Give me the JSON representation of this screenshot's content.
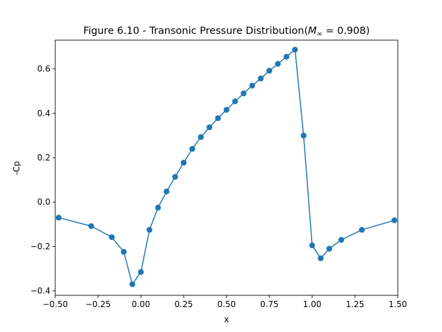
{
  "chart_data": {
    "type": "line",
    "title": "Figure 6.10 - Transonic Pressure Distribution",
    "title_math": {
      "symbol": "M",
      "subscript": "∞",
      "equals_value": " = 0.908)"
    },
    "xlabel": "x",
    "ylabel": "-Cp",
    "xlim": [
      -0.5,
      1.5
    ],
    "ylim": [
      -0.42,
      0.73
    ],
    "xticks": [
      {
        "value": -0.5,
        "label": "−0.50"
      },
      {
        "value": -0.25,
        "label": "−0.25"
      },
      {
        "value": 0.0,
        "label": "0.00"
      },
      {
        "value": 0.25,
        "label": "0.25"
      },
      {
        "value": 0.5,
        "label": "0.50"
      },
      {
        "value": 0.75,
        "label": "0.75"
      },
      {
        "value": 1.0,
        "label": "1.00"
      },
      {
        "value": 1.25,
        "label": "1.25"
      },
      {
        "value": 1.5,
        "label": "1.50"
      }
    ],
    "yticks": [
      {
        "value": -0.4,
        "label": "−0.4"
      },
      {
        "value": -0.2,
        "label": "−0.2"
      },
      {
        "value": 0.0,
        "label": "0.0"
      },
      {
        "value": 0.2,
        "label": "0.2"
      },
      {
        "value": 0.4,
        "label": "0.4"
      },
      {
        "value": 0.6,
        "label": "0.6"
      }
    ],
    "grid": false,
    "series": [
      {
        "color": "#1f77b4",
        "marker": "circle",
        "x": [
          -0.48,
          -0.29,
          -0.17,
          -0.1,
          -0.05,
          0.0,
          0.05,
          0.1,
          0.15,
          0.2,
          0.25,
          0.3,
          0.35,
          0.4,
          0.45,
          0.5,
          0.55,
          0.6,
          0.65,
          0.7,
          0.75,
          0.8,
          0.85,
          0.9,
          0.95,
          1.0,
          1.05,
          1.1,
          1.17,
          1.29,
          1.48
        ],
        "y": [
          -0.07,
          -0.108,
          -0.158,
          -0.224,
          -0.37,
          -0.315,
          -0.125,
          -0.025,
          0.048,
          0.114,
          0.178,
          0.24,
          0.293,
          0.337,
          0.378,
          0.416,
          0.454,
          0.49,
          0.525,
          0.557,
          0.592,
          0.623,
          0.655,
          0.687,
          0.3,
          -0.195,
          -0.253,
          -0.21,
          -0.17,
          -0.125,
          -0.082
        ]
      }
    ]
  }
}
